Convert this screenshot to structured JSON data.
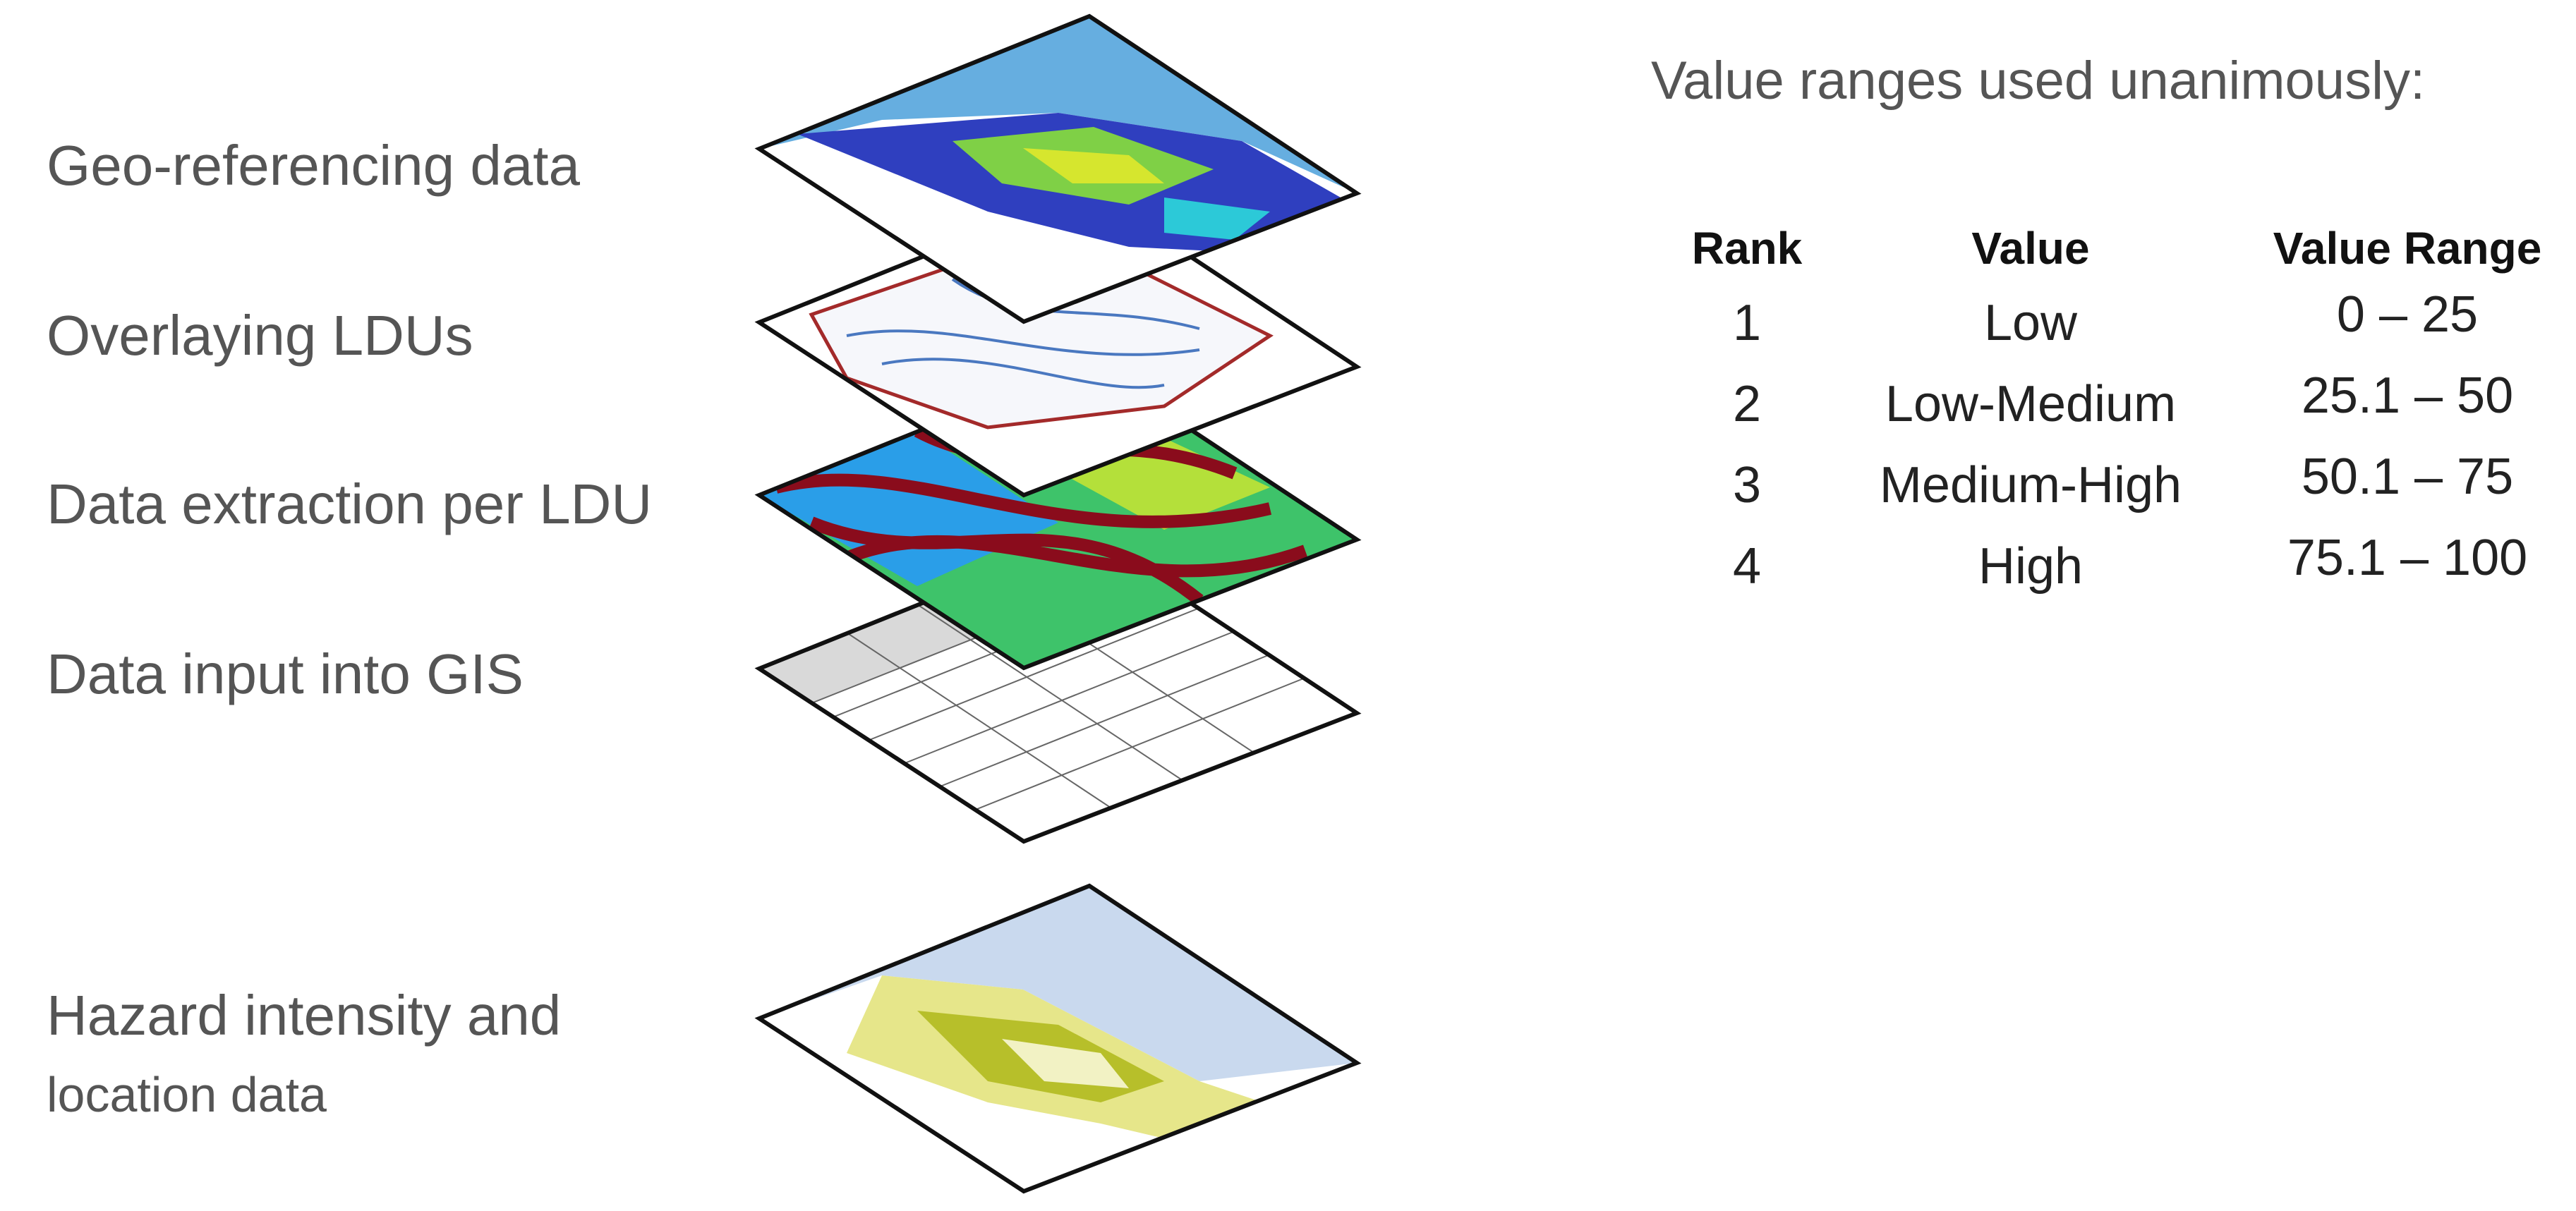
{
  "steps": [
    "Geo-referencing data",
    "Overlaying LDUs",
    "Data extraction per LDU",
    "Data input into GIS"
  ],
  "output": {
    "line1": "Hazard intensity  and",
    "line2": "location data"
  },
  "table": {
    "title": "Value ranges used unanimously:",
    "headers": [
      "Rank",
      "Value",
      "Value Range"
    ],
    "rows": [
      [
        "1",
        "Low",
        "0 – 25"
      ],
      [
        "2",
        "Low-Medium",
        "25.1 – 50"
      ],
      [
        "3",
        "Medium-High",
        "50.1 – 75"
      ],
      [
        "4",
        "High",
        "75.1 – 100"
      ]
    ]
  }
}
